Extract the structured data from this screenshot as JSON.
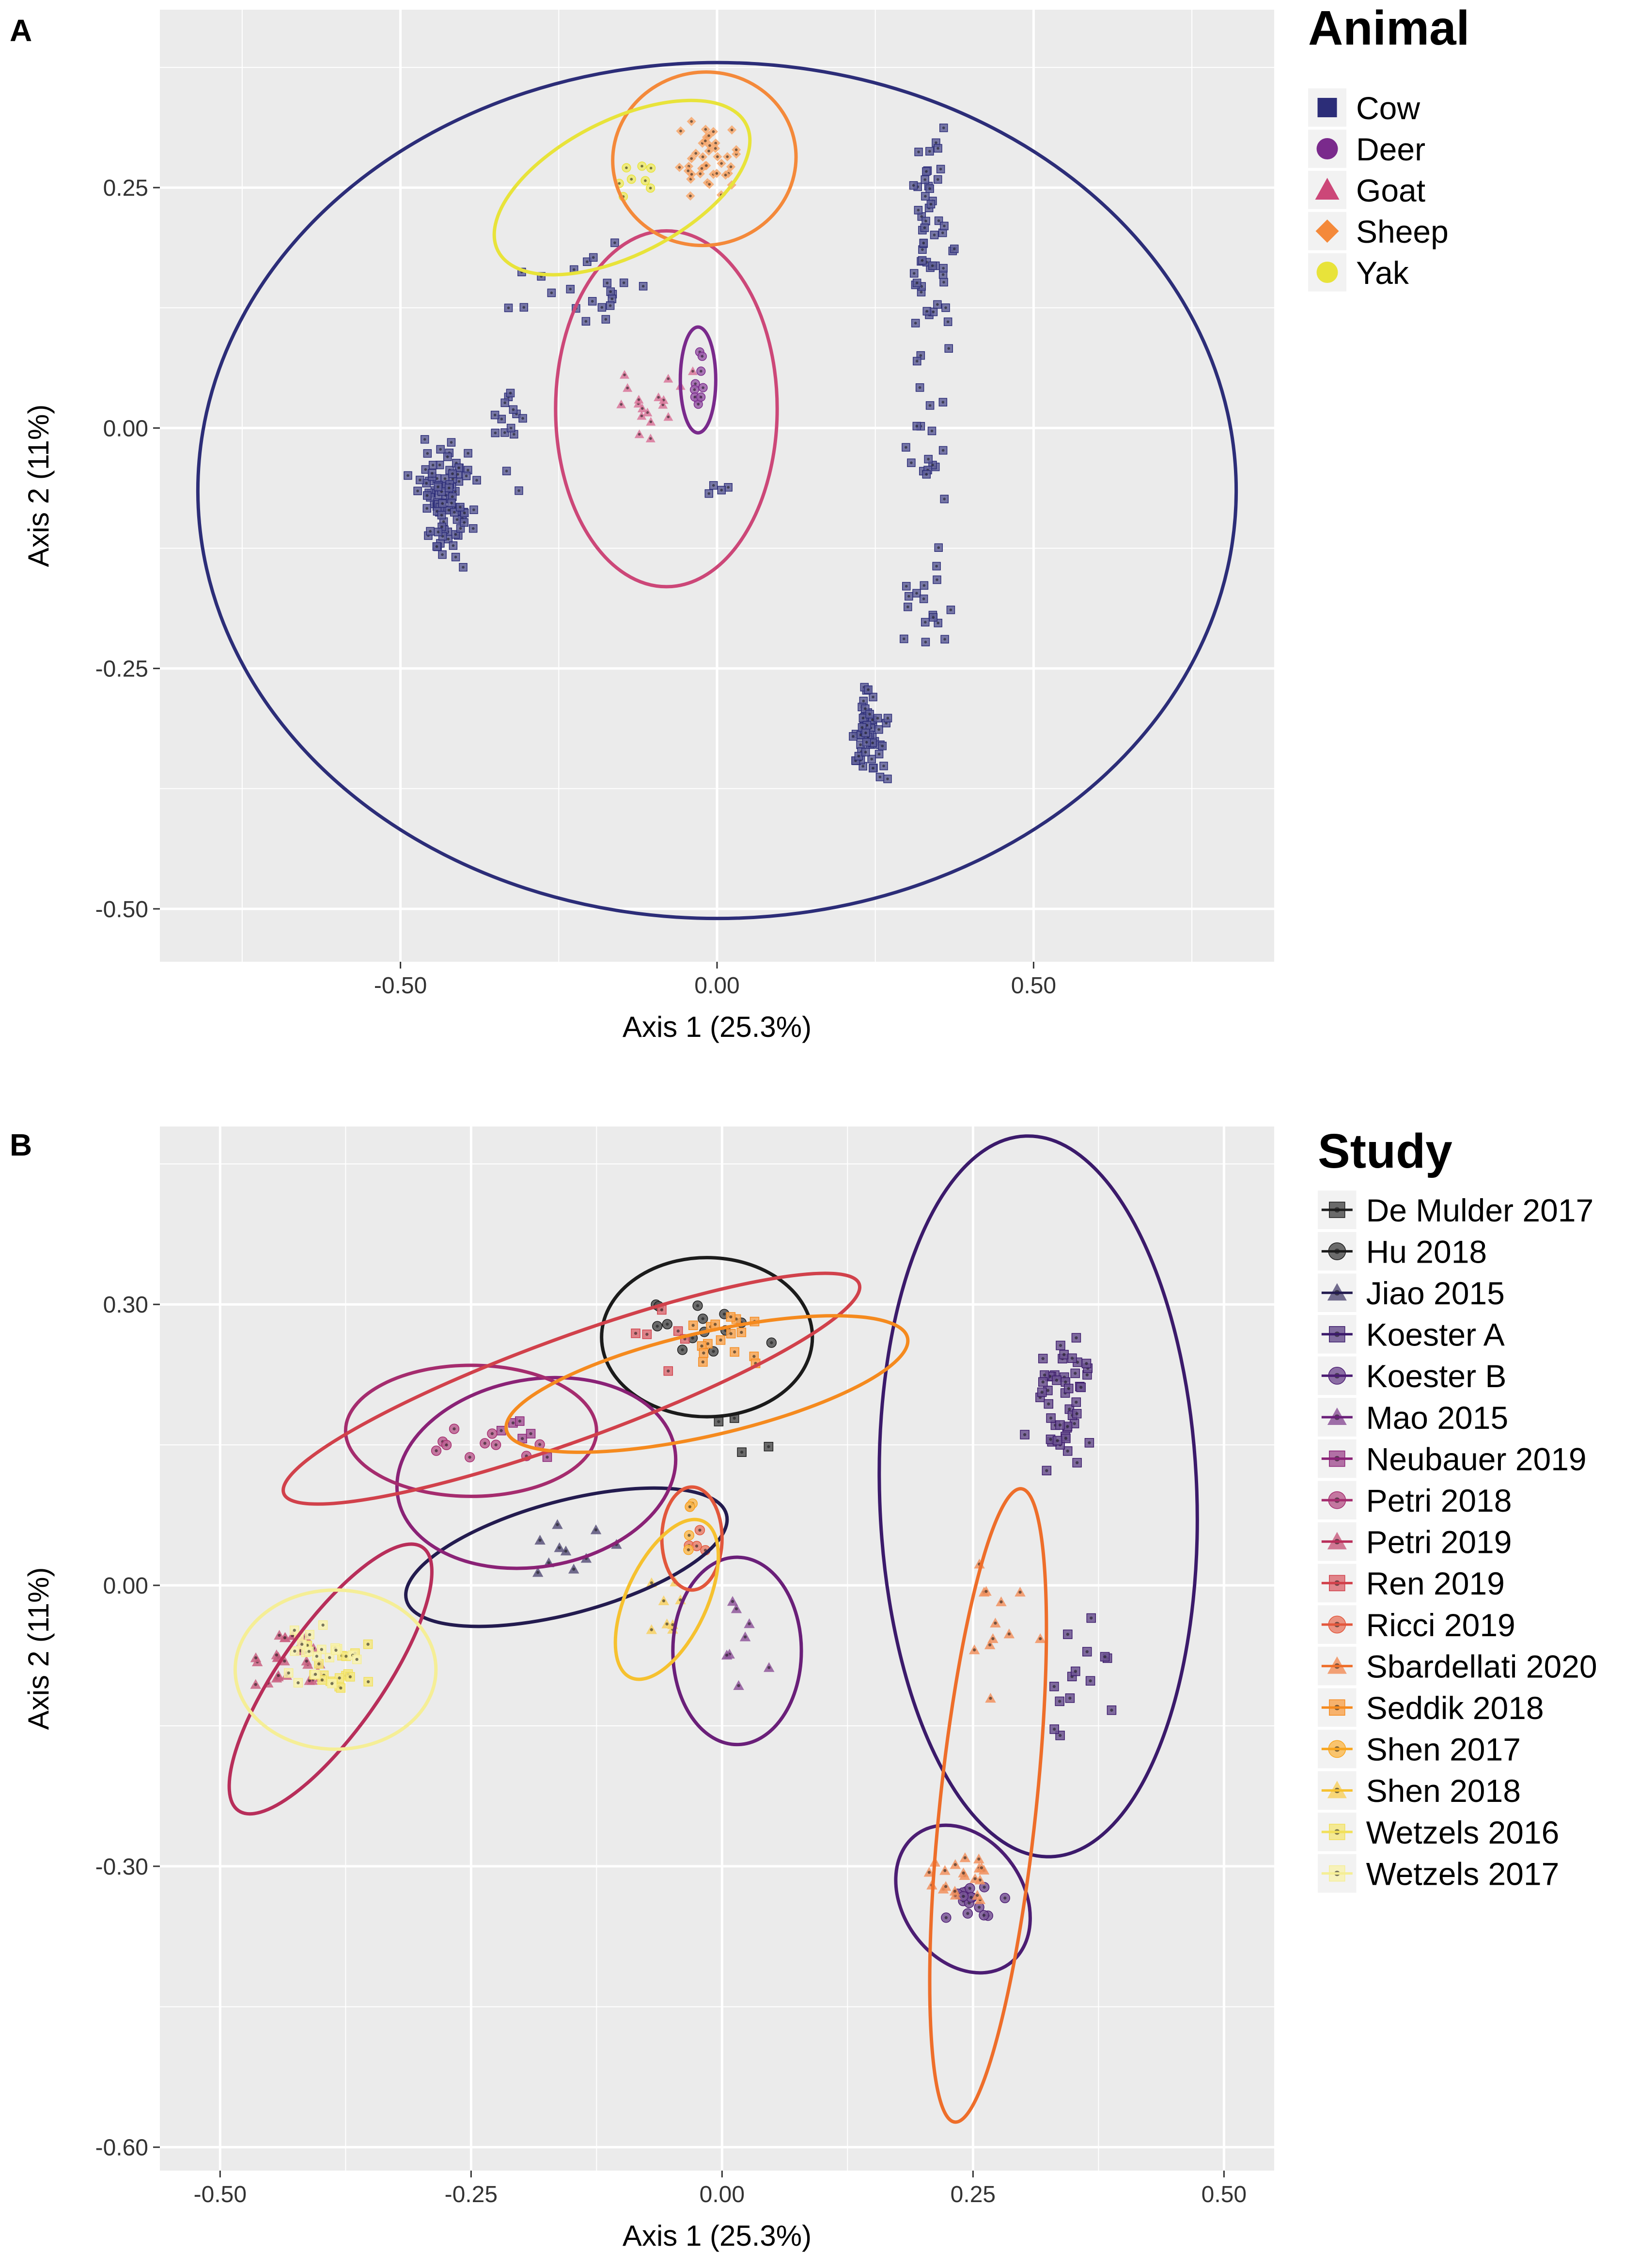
{
  "chart_data": [
    {
      "type": "scatter",
      "panel_label": "A",
      "title": "",
      "xlabel": "Axis 1 (25.3%)",
      "ylabel": "Axis 2 (11%)",
      "xlim": [
        -0.88,
        0.88
      ],
      "ylim": [
        -0.555,
        0.435
      ],
      "xticks": [
        -0.5,
        0.0,
        0.5
      ],
      "xtick_labels": [
        "-0.50",
        "0.00",
        "0.50"
      ],
      "yticks": [
        -0.5,
        -0.25,
        0.0,
        0.25
      ],
      "ytick_labels": [
        "-0.50",
        "-0.25",
        "0.00",
        "0.25"
      ],
      "grid": true,
      "legend": {
        "title": "Animal",
        "placement": "right",
        "entries": [
          {
            "name": "Cow",
            "color": "#2c2d78",
            "shape": "square"
          },
          {
            "name": "Deer",
            "color": "#7a2a8c",
            "shape": "circle"
          },
          {
            "name": "Goat",
            "color": "#cc4778",
            "shape": "triangle"
          },
          {
            "name": "Sheep",
            "color": "#f4893a",
            "shape": "diamond"
          },
          {
            "name": "Yak",
            "color": "#e8e33a",
            "shape": "circle"
          }
        ]
      },
      "series": [
        {
          "name": "Cow",
          "color": "#2c2d78",
          "shape": "square",
          "clusters": [
            {
              "center": [
                -0.43,
                -0.075
              ],
              "spread": [
                0.04,
                0.05
              ],
              "n": 95
            },
            {
              "center": [
                -0.2,
                0.145
              ],
              "spread": [
                0.09,
                0.035
              ],
              "n": 22
            },
            {
              "center": [
                -0.33,
                0.0
              ],
              "spread": [
                0.03,
                0.07
              ],
              "n": 14
            },
            {
              "center": [
                0.34,
                0.19
              ],
              "spread": [
                0.03,
                0.09
              ],
              "n": 55
            },
            {
              "center": [
                0.34,
                -0.03
              ],
              "spread": [
                0.03,
                0.07
              ],
              "n": 18
            },
            {
              "center": [
                0.33,
                -0.18
              ],
              "spread": [
                0.04,
                0.05
              ],
              "n": 16
            },
            {
              "center": [
                0.24,
                -0.32
              ],
              "spread": [
                0.025,
                0.04
              ],
              "n": 55
            },
            {
              "center": [
                0.0,
                -0.07
              ],
              "spread": [
                0.03,
                0.02
              ],
              "n": 4
            }
          ],
          "ellipse": {
            "center": [
              0.0,
              -0.065
            ],
            "rx": 0.82,
            "ry": 0.445,
            "angle": 0
          }
        },
        {
          "name": "Deer",
          "color": "#7a2a8c",
          "shape": "circle",
          "clusters": [
            {
              "center": [
                -0.03,
                0.05
              ],
              "spread": [
                0.008,
                0.025
              ],
              "n": 10
            }
          ],
          "ellipse": {
            "center": [
              -0.03,
              0.05
            ],
            "rx": 0.028,
            "ry": 0.055,
            "angle": 0
          }
        },
        {
          "name": "Goat",
          "color": "#cc4778",
          "shape": "triangle",
          "clusters": [
            {
              "center": [
                -0.12,
                0.02
              ],
              "spread": [
                0.06,
                0.045
              ],
              "n": 18
            }
          ],
          "ellipse": {
            "center": [
              -0.08,
              0.02
            ],
            "rx": 0.175,
            "ry": 0.185,
            "angle": 0
          }
        },
        {
          "name": "Sheep",
          "color": "#f4893a",
          "shape": "diamond",
          "clusters": [
            {
              "center": [
                -0.02,
                0.275
              ],
              "spread": [
                0.05,
                0.04
              ],
              "n": 40
            }
          ],
          "ellipse": {
            "center": [
              -0.02,
              0.28
            ],
            "rx": 0.145,
            "ry": 0.09,
            "angle": -10
          }
        },
        {
          "name": "Yak",
          "color": "#e8e33a",
          "shape": "circle",
          "clusters": [
            {
              "center": [
                -0.12,
                0.255
              ],
              "spread": [
                0.04,
                0.02
              ],
              "n": 8
            }
          ],
          "ellipse": {
            "center": [
              -0.15,
              0.25
            ],
            "rx": 0.22,
            "ry": 0.07,
            "angle": -27
          }
        }
      ]
    },
    {
      "type": "scatter",
      "panel_label": "B",
      "title": "",
      "xlabel": "Axis 1 (25.3%)",
      "ylabel": "Axis 2 (11%)",
      "xlim": [
        -0.56,
        0.55
      ],
      "ylim": [
        -0.625,
        0.49
      ],
      "xticks": [
        -0.5,
        -0.25,
        0.0,
        0.25,
        0.5
      ],
      "xtick_labels": [
        "-0.50",
        "-0.25",
        "0.00",
        "0.25",
        "0.50"
      ],
      "yticks": [
        -0.6,
        -0.3,
        0.0,
        0.3
      ],
      "ytick_labels": [
        "-0.60",
        "-0.30",
        "0.00",
        "0.30"
      ],
      "grid": true,
      "legend": {
        "title": "Study",
        "placement": "right",
        "entries": [
          {
            "name": "De Mulder 2017",
            "color": "#1b1b1b",
            "shape": "square"
          },
          {
            "name": "Hu 2018",
            "color": "#1b1b1b",
            "shape": "circle"
          },
          {
            "name": "Jiao 2015",
            "color": "#231b4f",
            "shape": "triangle"
          },
          {
            "name": "Koester A",
            "color": "#3b1a6b",
            "shape": "square"
          },
          {
            "name": "Koester B",
            "color": "#4c1d73",
            "shape": "circle"
          },
          {
            "name": "Mao 2015",
            "color": "#6a1f79",
            "shape": "triangle"
          },
          {
            "name": "Neubauer 2019",
            "color": "#8a2276",
            "shape": "square"
          },
          {
            "name": "Petri 2018",
            "color": "#a52c6e",
            "shape": "circle"
          },
          {
            "name": "Petri 2019",
            "color": "#b82e5a",
            "shape": "triangle"
          },
          {
            "name": "Ren 2019",
            "color": "#d1414b",
            "shape": "square"
          },
          {
            "name": "Ricci 2019",
            "color": "#e2573c",
            "shape": "circle"
          },
          {
            "name": "Sbardellati 2020",
            "color": "#ee6e2a",
            "shape": "triangle"
          },
          {
            "name": "Seddik 2018",
            "color": "#f58a1e",
            "shape": "square"
          },
          {
            "name": "Shen 2017",
            "color": "#f8a51f",
            "shape": "circle"
          },
          {
            "name": "Shen 2018",
            "color": "#f6c12f",
            "shape": "triangle"
          },
          {
            "name": "Wetzels 2016",
            "color": "#f1e05a",
            "shape": "square"
          },
          {
            "name": "Wetzels 2017",
            "color": "#f5ee96",
            "shape": "square"
          }
        ]
      },
      "series": [
        {
          "name": "De Mulder 2017",
          "color": "#1b1b1b",
          "shape": "square",
          "clusters": [
            {
              "center": [
                0.04,
                0.16
              ],
              "spread": [
                0.04,
                0.05
              ],
              "n": 4
            }
          ],
          "ellipse": null
        },
        {
          "name": "Hu 2018",
          "color": "#1b1b1b",
          "shape": "circle",
          "clusters": [
            {
              "center": [
                -0.02,
                0.27
              ],
              "spread": [
                0.05,
                0.04
              ],
              "n": 14
            }
          ],
          "ellipse": {
            "center": [
              -0.015,
              0.265
            ],
            "rx": 0.105,
            "ry": 0.085,
            "angle": 0
          }
        },
        {
          "name": "Jiao 2015",
          "color": "#231b4f",
          "shape": "triangle",
          "clusters": [
            {
              "center": [
                -0.15,
                0.04
              ],
              "spread": [
                0.05,
                0.025
              ],
              "n": 10
            }
          ],
          "ellipse": {
            "center": [
              -0.155,
              0.03
            ],
            "rx": 0.165,
            "ry": 0.06,
            "angle": -15
          }
        },
        {
          "name": "Koester A",
          "color": "#3b1a6b",
          "shape": "square",
          "clusters": [
            {
              "center": [
                0.34,
                0.2
              ],
              "spread": [
                0.03,
                0.06
              ],
              "n": 48
            },
            {
              "center": [
                0.35,
                -0.1
              ],
              "spread": [
                0.03,
                0.06
              ],
              "n": 14
            }
          ],
          "ellipse": {
            "center": [
              0.315,
              0.095
            ],
            "rx": 0.158,
            "ry": 0.385,
            "angle": -2
          }
        },
        {
          "name": "Koester B",
          "color": "#4c1d73",
          "shape": "circle",
          "clusters": [
            {
              "center": [
                0.245,
                -0.34
              ],
              "spread": [
                0.03,
                0.025
              ],
              "n": 16
            }
          ],
          "ellipse": {
            "center": [
              0.24,
              -0.335
            ],
            "rx": 0.06,
            "ry": 0.085,
            "angle": -35
          }
        },
        {
          "name": "Mao 2015",
          "color": "#6a1f79",
          "shape": "triangle",
          "clusters": [
            {
              "center": [
                0.03,
                -0.06
              ],
              "spread": [
                0.03,
                0.05
              ],
              "n": 8
            }
          ],
          "ellipse": {
            "center": [
              0.015,
              -0.07
            ],
            "rx": 0.064,
            "ry": 0.1,
            "angle": 0
          }
        },
        {
          "name": "Neubauer 2019",
          "color": "#8a2276",
          "shape": "square",
          "clusters": [
            {
              "center": [
                -0.2,
                0.16
              ],
              "spread": [
                0.04,
                0.025
              ],
              "n": 6
            }
          ],
          "ellipse": {
            "center": [
              -0.185,
              0.12
            ],
            "rx": 0.14,
            "ry": 0.1,
            "angle": -10
          }
        },
        {
          "name": "Petri 2018",
          "color": "#a52c6e",
          "shape": "circle",
          "clusters": [
            {
              "center": [
                -0.23,
                0.16
              ],
              "spread": [
                0.05,
                0.025
              ],
              "n": 10
            }
          ],
          "ellipse": {
            "center": [
              -0.25,
              0.165
            ],
            "rx": 0.125,
            "ry": 0.07,
            "angle": 0
          }
        },
        {
          "name": "Petri 2019",
          "color": "#b82e5a",
          "shape": "triangle",
          "clusters": [
            {
              "center": [
                -0.43,
                -0.08
              ],
              "spread": [
                0.025,
                0.035
              ],
              "n": 28
            }
          ],
          "ellipse": {
            "center": [
              -0.39,
              -0.1
            ],
            "rx": 0.16,
            "ry": 0.055,
            "angle": -55
          }
        },
        {
          "name": "Ren 2019",
          "color": "#d1414b",
          "shape": "square",
          "clusters": [
            {
              "center": [
                -0.06,
                0.27
              ],
              "spread": [
                0.03,
                0.04
              ],
              "n": 6
            }
          ],
          "ellipse": {
            "center": [
              -0.15,
              0.21
            ],
            "rx": 0.305,
            "ry": 0.055,
            "angle": -20
          }
        },
        {
          "name": "Ricci 2019",
          "color": "#e2573c",
          "shape": "circle",
          "clusters": [
            {
              "center": [
                -0.025,
                0.05
              ],
              "spread": [
                0.01,
                0.035
              ],
              "n": 5
            }
          ],
          "ellipse": {
            "center": [
              -0.03,
              0.05
            ],
            "rx": 0.03,
            "ry": 0.055,
            "angle": 0
          }
        },
        {
          "name": "Sbardellati 2020",
          "color": "#ee6e2a",
          "shape": "triangle",
          "clusters": [
            {
              "center": [
                0.28,
                -0.05
              ],
              "spread": [
                0.03,
                0.1
              ],
              "n": 12
            },
            {
              "center": [
                0.245,
                -0.31
              ],
              "spread": [
                0.035,
                0.03
              ],
              "n": 20
            }
          ],
          "ellipse": {
            "center": [
              0.265,
              -0.235
            ],
            "rx": 0.048,
            "ry": 0.34,
            "angle": 6
          }
        },
        {
          "name": "Seddik 2018",
          "color": "#f58a1e",
          "shape": "square",
          "clusters": [
            {
              "center": [
                0.0,
                0.26
              ],
              "spread": [
                0.04,
                0.035
              ],
              "n": 16
            }
          ],
          "ellipse": {
            "center": [
              -0.015,
              0.215
            ],
            "rx": 0.205,
            "ry": 0.055,
            "angle": -13
          }
        },
        {
          "name": "Shen 2017",
          "color": "#f8a51f",
          "shape": "circle",
          "clusters": [
            {
              "center": [
                -0.03,
                0.06
              ],
              "spread": [
                0.01,
                0.04
              ],
              "n": 4
            }
          ],
          "ellipse": null
        },
        {
          "name": "Shen 2018",
          "color": "#f6c12f",
          "shape": "triangle",
          "clusters": [
            {
              "center": [
                -0.055,
                -0.025
              ],
              "spread": [
                0.02,
                0.035
              ],
              "n": 8
            }
          ],
          "ellipse": {
            "center": [
              -0.055,
              -0.015
            ],
            "rx": 0.04,
            "ry": 0.092,
            "angle": 25
          }
        },
        {
          "name": "Wetzels 2016",
          "color": "#f1e05a",
          "shape": "square",
          "clusters": [
            {
              "center": [
                -0.38,
                -0.09
              ],
              "spread": [
                0.03,
                0.03
              ],
              "n": 18
            }
          ],
          "ellipse": null
        },
        {
          "name": "Wetzels 2017",
          "color": "#f5ee96",
          "shape": "square",
          "clusters": [
            {
              "center": [
                -0.4,
                -0.08
              ],
              "spread": [
                0.035,
                0.035
              ],
              "n": 20
            }
          ],
          "ellipse": {
            "center": [
              -0.385,
              -0.09
            ],
            "rx": 0.1,
            "ry": 0.085,
            "angle": 0
          }
        }
      ]
    }
  ]
}
